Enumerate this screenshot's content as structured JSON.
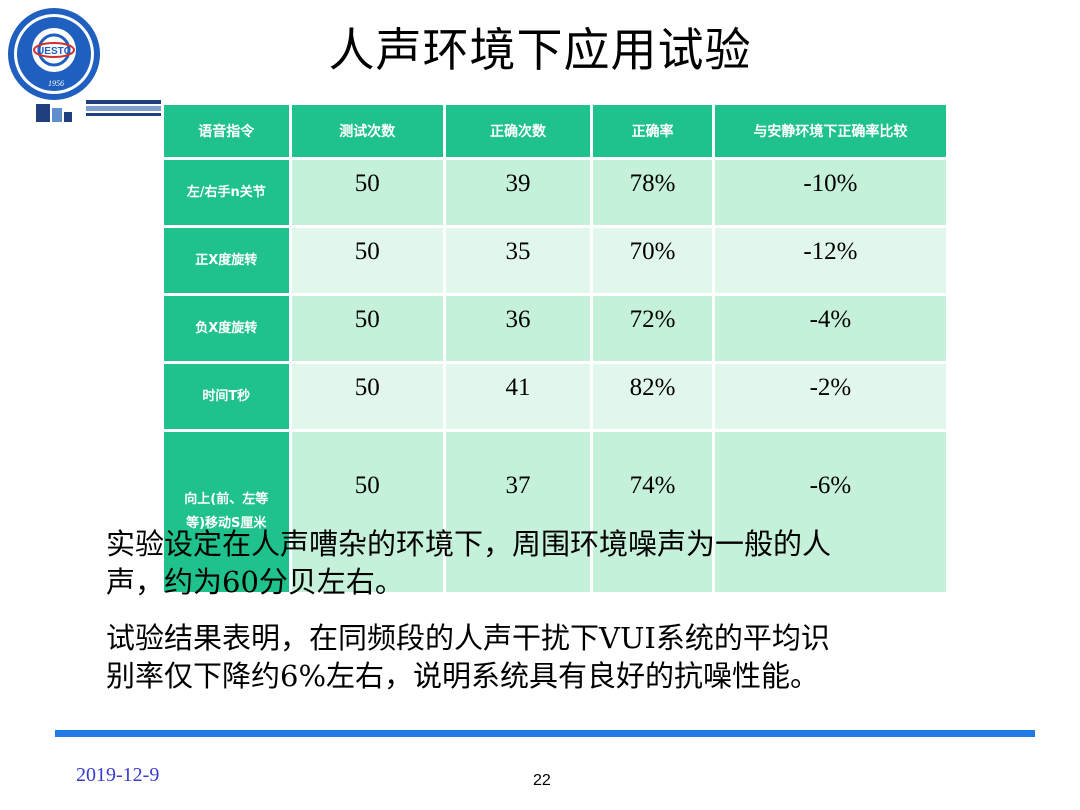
{
  "slide": {
    "title": "人声环境下应用试验",
    "date": "2019-12-9",
    "page_number": "22"
  },
  "logo": {
    "year": "1956"
  },
  "table": {
    "headers": [
      "语音指令",
      "测试次数",
      "正确次数",
      "正确率",
      "与安静环境下正确率比较"
    ],
    "rows": [
      {
        "command": "左/右手n关节",
        "tests": "50",
        "correct": "39",
        "rate": "78%",
        "delta": "-10%"
      },
      {
        "command": "正X度旋转",
        "tests": "50",
        "correct": "35",
        "rate": "70%",
        "delta": "-12%"
      },
      {
        "command": "负X度旋转",
        "tests": "50",
        "correct": "36",
        "rate": "72%",
        "delta": "-4%"
      },
      {
        "command": "时间T秒",
        "tests": "50",
        "correct": "41",
        "rate": "82%",
        "delta": "-2%"
      },
      {
        "command_line1": "向上(前、左等",
        "command_line2": "等)移动S厘米",
        "tests": "50",
        "correct": "37",
        "rate": "74%",
        "delta": "-6%"
      }
    ]
  },
  "paragraphs": [
    {
      "line1": "实验设定在人声嘈杂的环境下，周围环境噪声为一般的人",
      "line2": "声，约为60分贝左右。"
    },
    {
      "line1": "试验结果表明，在同频段的人声干扰下VUI系统的平均识",
      "line2": "别率仅下降约6%左右，说明系统具有良好的抗噪性能。"
    }
  ],
  "colors": {
    "header_green": "#1fc28c",
    "row_odd": "#c5f0da",
    "row_even": "#e2f7ec",
    "rule_blue": "#1f7be3",
    "date_blue": "#3a3ad0"
  }
}
